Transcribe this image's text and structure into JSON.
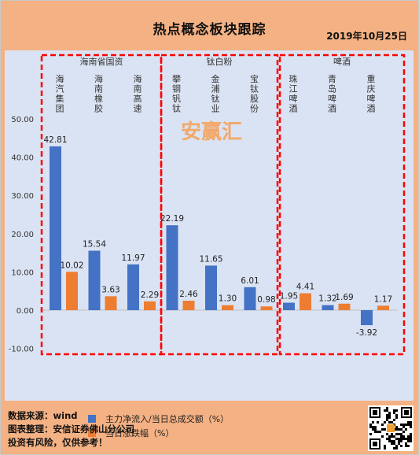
{
  "header": {
    "title": "热点概念板块跟踪",
    "date": "2019年10月25日"
  },
  "watermark": "安赢汇",
  "colors": {
    "series1": "#4472c4",
    "series2": "#ed7d31",
    "group_border": "#ff0000",
    "plot_bg": "#dae3f3",
    "page_bg": "#f4b183"
  },
  "footer": {
    "line1": "数据来源：wind",
    "line2": "图表整理：安信证券佛山分公司",
    "line3": "投资有风险，仅供参考！"
  },
  "qr_icon": "qr-code-icon",
  "chart_data": {
    "type": "bar",
    "ylim": [
      -10,
      50
    ],
    "yticks": [
      "-10.00",
      "0.00",
      "10.00",
      "20.00",
      "30.00",
      "40.00",
      "50.00"
    ],
    "grid": false,
    "legend_position": "bottom",
    "groups": [
      {
        "name": "海南省国资",
        "categories": [
          "海汽集团",
          "海南橡胶",
          "海南高速"
        ]
      },
      {
        "name": "钛白粉",
        "categories": [
          "攀钢钒钛",
          "金浦钛业",
          "宝钛股份"
        ]
      },
      {
        "name": "啤酒",
        "categories": [
          "珠江啤酒",
          "青岛啤酒",
          "重庆啤酒"
        ]
      }
    ],
    "categories": [
      "海汽集团",
      "海南橡胶",
      "海南高速",
      "攀钢钒钛",
      "金浦钛业",
      "宝钛股份",
      "珠江啤酒",
      "青岛啤酒",
      "重庆啤酒"
    ],
    "series": [
      {
        "name": "主力净流入/当日总成交额（%）",
        "values": [
          42.81,
          15.54,
          11.97,
          22.19,
          11.65,
          6.01,
          1.95,
          1.32,
          -3.92
        ],
        "labels": [
          "42.81",
          "15.54",
          "11.97",
          "22.19",
          "11.65",
          "6.01",
          "1.95",
          "1.32",
          "-3.92"
        ]
      },
      {
        "name": "当日涨跌幅（%）",
        "values": [
          10.02,
          3.63,
          2.29,
          2.46,
          1.3,
          0.98,
          4.41,
          1.69,
          1.17
        ],
        "labels": [
          "10.02",
          "3.63",
          "2.29",
          "2.46",
          "1.30",
          "0.98",
          "4.41",
          "1.69",
          "1.17"
        ]
      }
    ]
  }
}
